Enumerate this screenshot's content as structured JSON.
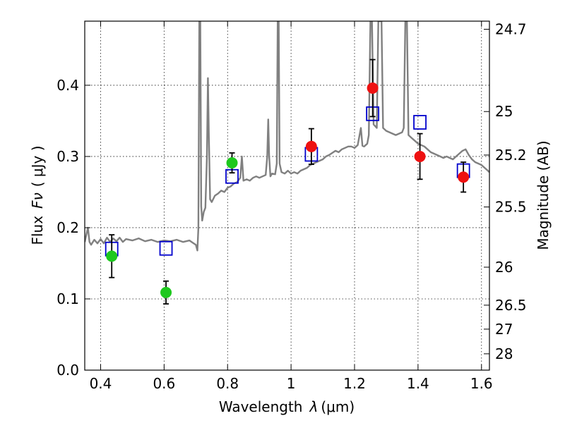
{
  "chart_data": {
    "type": "scatter",
    "xlabel_prefix": "Wavelength",
    "xlabel_symbol": "λ",
    "xlabel_unit": "(μm)",
    "ylabel_prefix": "Flux",
    "ylabel_symbol": "Fν",
    "ylabel_unit": "( μJy )",
    "y2label": "Magnitude (AB)",
    "xlim": [
      0.35,
      1.625
    ],
    "ylim": [
      0.0,
      0.49
    ],
    "grid": true,
    "x_ticks": [
      0.4,
      0.6,
      0.8,
      1.0,
      1.2,
      1.4,
      1.6
    ],
    "x_tick_labels": [
      "0.4",
      "0.6",
      "0.8",
      "1",
      "1.2",
      "1.4",
      "1.6"
    ],
    "y_ticks": [
      0.0,
      0.1,
      0.2,
      0.3,
      0.4
    ],
    "y_tick_labels": [
      "0.0",
      "0.1",
      "0.2",
      "0.3",
      "0.4"
    ],
    "y2_ticks": [
      {
        "label": "24.7",
        "mag": 24.7
      },
      {
        "label": "25",
        "mag": 25.0
      },
      {
        "label": "25.2",
        "mag": 25.2
      },
      {
        "label": "25.5",
        "mag": 25.5
      },
      {
        "label": "26",
        "mag": 26.0
      },
      {
        "label": "26.5",
        "mag": 26.5
      },
      {
        "label": "27",
        "mag": 27.0
      },
      {
        "label": "28",
        "mag": 28.0
      }
    ],
    "colors": {
      "spectrum": "#808080",
      "green": "#1ec81e",
      "red": "#ee1111",
      "model_box": "#0000cc",
      "errorbar": "#000000"
    },
    "series": [
      {
        "kind": "spectrum",
        "points": [
          [
            0.35,
            0.18
          ],
          [
            0.355,
            0.19
          ],
          [
            0.36,
            0.2
          ],
          [
            0.365,
            0.18
          ],
          [
            0.37,
            0.176
          ],
          [
            0.38,
            0.183
          ],
          [
            0.39,
            0.178
          ],
          [
            0.4,
            0.184
          ],
          [
            0.41,
            0.178
          ],
          [
            0.42,
            0.186
          ],
          [
            0.43,
            0.18
          ],
          [
            0.44,
            0.185
          ],
          [
            0.45,
            0.181
          ],
          [
            0.46,
            0.186
          ],
          [
            0.47,
            0.18
          ],
          [
            0.48,
            0.184
          ],
          [
            0.5,
            0.182
          ],
          [
            0.52,
            0.185
          ],
          [
            0.54,
            0.181
          ],
          [
            0.56,
            0.183
          ],
          [
            0.58,
            0.18
          ],
          [
            0.6,
            0.182
          ],
          [
            0.62,
            0.181
          ],
          [
            0.64,
            0.183
          ],
          [
            0.66,
            0.18
          ],
          [
            0.68,
            0.182
          ],
          [
            0.69,
            0.179
          ],
          [
            0.7,
            0.176
          ],
          [
            0.705,
            0.168
          ],
          [
            0.708,
            0.2
          ],
          [
            0.711,
            0.49
          ],
          [
            0.714,
            0.49
          ],
          [
            0.717,
            0.23
          ],
          [
            0.72,
            0.21
          ],
          [
            0.725,
            0.222
          ],
          [
            0.73,
            0.228
          ],
          [
            0.735,
            0.3
          ],
          [
            0.738,
            0.41
          ],
          [
            0.741,
            0.33
          ],
          [
            0.745,
            0.24
          ],
          [
            0.75,
            0.236
          ],
          [
            0.76,
            0.245
          ],
          [
            0.77,
            0.248
          ],
          [
            0.78,
            0.252
          ],
          [
            0.79,
            0.25
          ],
          [
            0.8,
            0.256
          ],
          [
            0.81,
            0.258
          ],
          [
            0.82,
            0.262
          ],
          [
            0.83,
            0.264
          ],
          [
            0.84,
            0.27
          ],
          [
            0.845,
            0.3
          ],
          [
            0.85,
            0.266
          ],
          [
            0.86,
            0.268
          ],
          [
            0.87,
            0.266
          ],
          [
            0.88,
            0.27
          ],
          [
            0.89,
            0.272
          ],
          [
            0.9,
            0.27
          ],
          [
            0.91,
            0.272
          ],
          [
            0.92,
            0.274
          ],
          [
            0.925,
            0.3
          ],
          [
            0.928,
            0.352
          ],
          [
            0.931,
            0.3
          ],
          [
            0.935,
            0.272
          ],
          [
            0.94,
            0.276
          ],
          [
            0.95,
            0.275
          ],
          [
            0.955,
            0.29
          ],
          [
            0.958,
            0.49
          ],
          [
            0.961,
            0.49
          ],
          [
            0.964,
            0.29
          ],
          [
            0.97,
            0.278
          ],
          [
            0.98,
            0.276
          ],
          [
            0.99,
            0.28
          ],
          [
            1.0,
            0.276
          ],
          [
            1.01,
            0.278
          ],
          [
            1.02,
            0.276
          ],
          [
            1.03,
            0.28
          ],
          [
            1.04,
            0.282
          ],
          [
            1.05,
            0.284
          ],
          [
            1.06,
            0.288
          ],
          [
            1.07,
            0.29
          ],
          [
            1.08,
            0.292
          ],
          [
            1.09,
            0.294
          ],
          [
            1.1,
            0.296
          ],
          [
            1.11,
            0.3
          ],
          [
            1.12,
            0.302
          ],
          [
            1.13,
            0.305
          ],
          [
            1.14,
            0.308
          ],
          [
            1.15,
            0.306
          ],
          [
            1.16,
            0.31
          ],
          [
            1.17,
            0.312
          ],
          [
            1.18,
            0.314
          ],
          [
            1.19,
            0.314
          ],
          [
            1.2,
            0.312
          ],
          [
            1.21,
            0.316
          ],
          [
            1.22,
            0.34
          ],
          [
            1.225,
            0.315
          ],
          [
            1.23,
            0.314
          ],
          [
            1.24,
            0.318
          ],
          [
            1.245,
            0.33
          ],
          [
            1.25,
            0.49
          ],
          [
            1.255,
            0.49
          ],
          [
            1.26,
            0.345
          ],
          [
            1.27,
            0.34
          ],
          [
            1.275,
            0.49
          ],
          [
            1.28,
            0.49
          ],
          [
            1.285,
            0.49
          ],
          [
            1.29,
            0.34
          ],
          [
            1.3,
            0.336
          ],
          [
            1.31,
            0.334
          ],
          [
            1.32,
            0.332
          ],
          [
            1.33,
            0.33
          ],
          [
            1.34,
            0.332
          ],
          [
            1.35,
            0.334
          ],
          [
            1.355,
            0.34
          ],
          [
            1.36,
            0.49
          ],
          [
            1.365,
            0.49
          ],
          [
            1.37,
            0.33
          ],
          [
            1.38,
            0.326
          ],
          [
            1.39,
            0.322
          ],
          [
            1.4,
            0.318
          ],
          [
            1.41,
            0.316
          ],
          [
            1.42,
            0.314
          ],
          [
            1.43,
            0.31
          ],
          [
            1.44,
            0.306
          ],
          [
            1.45,
            0.304
          ],
          [
            1.46,
            0.302
          ],
          [
            1.47,
            0.3
          ],
          [
            1.48,
            0.298
          ],
          [
            1.49,
            0.3
          ],
          [
            1.5,
            0.298
          ],
          [
            1.51,
            0.296
          ],
          [
            1.52,
            0.3
          ],
          [
            1.53,
            0.304
          ],
          [
            1.54,
            0.308
          ],
          [
            1.55,
            0.31
          ],
          [
            1.56,
            0.302
          ],
          [
            1.57,
            0.296
          ],
          [
            1.58,
            0.292
          ],
          [
            1.59,
            0.29
          ],
          [
            1.6,
            0.288
          ],
          [
            1.61,
            0.284
          ],
          [
            1.62,
            0.28
          ],
          [
            1.625,
            0.278
          ]
        ]
      },
      {
        "kind": "observed",
        "color_key": "green",
        "points": [
          {
            "x": 0.435,
            "y": 0.16,
            "err": 0.03
          },
          {
            "x": 0.606,
            "y": 0.109,
            "err": 0.016
          },
          {
            "x": 0.814,
            "y": 0.291,
            "err": 0.014
          }
        ]
      },
      {
        "kind": "observed",
        "color_key": "red",
        "points": [
          {
            "x": 1.064,
            "y": 0.314,
            "err": 0.025
          },
          {
            "x": 1.257,
            "y": 0.396,
            "err": 0.04
          },
          {
            "x": 1.406,
            "y": 0.3,
            "err": 0.032
          },
          {
            "x": 1.543,
            "y": 0.271,
            "err": 0.021
          }
        ]
      },
      {
        "kind": "model",
        "color_key": "model_box",
        "points": [
          {
            "x": 0.435,
            "y": 0.17
          },
          {
            "x": 0.606,
            "y": 0.171
          },
          {
            "x": 0.814,
            "y": 0.272
          },
          {
            "x": 1.064,
            "y": 0.303
          },
          {
            "x": 1.257,
            "y": 0.36
          },
          {
            "x": 1.406,
            "y": 0.348
          },
          {
            "x": 1.543,
            "y": 0.28
          }
        ]
      }
    ]
  }
}
